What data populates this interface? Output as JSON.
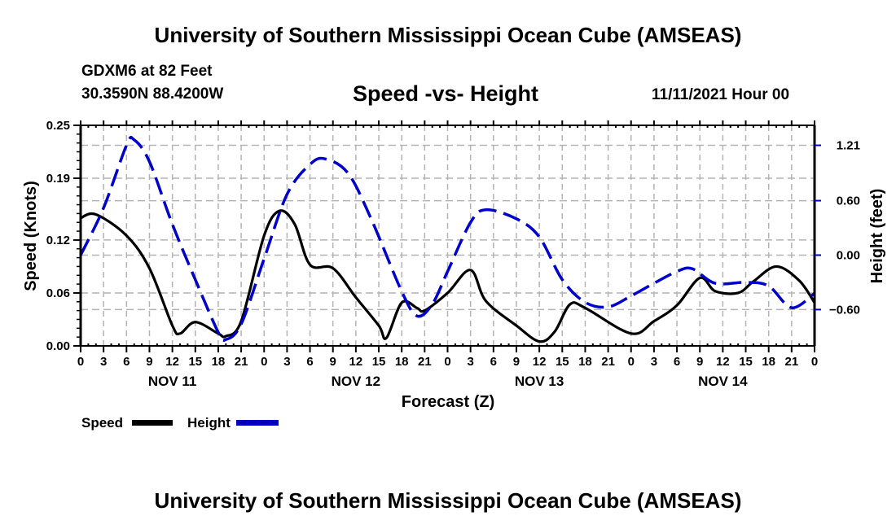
{
  "header": {
    "main_title": "University of Southern Mississippi Ocean Cube (AMSEAS)",
    "station": "GDXM6 at 82 Feet",
    "coords": "30.3590N  88.4200W",
    "chart_title": "Speed -vs- Height",
    "date": "11/11/2021 Hour 00"
  },
  "footer": {
    "title": "University of Southern Mississippi Ocean Cube (AMSEAS)"
  },
  "colors": {
    "speed": "#000000",
    "height": "#0000cc",
    "grid": "#b4b4b4"
  },
  "chart_data": {
    "type": "line",
    "title": "Speed -vs- Height",
    "xlabel": "Forecast (Z)",
    "ylabel": "Speed (Knots)",
    "y2label": "Height (feet)",
    "xlim_hours": [
      0,
      96
    ],
    "ylim": [
      0,
      0.25
    ],
    "y2lim": [
      -1.0,
      1.43
    ],
    "grid": true,
    "legend_position": "bottom-left",
    "x_tick_labels": [
      "0",
      "3",
      "6",
      "9",
      "12",
      "15",
      "18",
      "21",
      "0",
      "3",
      "6",
      "9",
      "12",
      "15",
      "18",
      "21",
      "0",
      "3",
      "6",
      "9",
      "12",
      "15",
      "18",
      "21",
      "0",
      "3",
      "6",
      "9",
      "12",
      "15",
      "18",
      "21",
      "0"
    ],
    "day_labels": [
      {
        "label": "NOV 11",
        "center_hour": 12
      },
      {
        "label": "NOV 12",
        "center_hour": 36
      },
      {
        "label": "NOV 13",
        "center_hour": 60
      },
      {
        "label": "NOV 14",
        "center_hour": 84
      }
    ],
    "y_ticks": [
      0.0,
      0.06,
      0.12,
      0.19,
      0.25
    ],
    "y_tick_labels": [
      "0.00",
      "0.06",
      "0.12",
      "0.19",
      "0.25"
    ],
    "y2_ticks": [
      -0.6,
      0.0,
      0.6,
      1.21
    ],
    "y2_tick_labels": [
      "−0.60",
      "0.00",
      "0.60",
      "1.21"
    ],
    "series": [
      {
        "name": "Speed",
        "axis": "left",
        "style": "solid",
        "x": [
          0,
          2,
          6,
          9,
          12,
          13,
          15,
          18,
          19,
          21,
          24,
          26,
          28,
          30,
          33,
          36,
          39,
          40,
          42,
          44,
          45,
          48,
          51,
          53,
          57,
          60,
          62,
          64,
          66,
          72,
          75,
          78,
          81,
          83,
          86,
          88,
          91,
          94,
          96
        ],
        "values": [
          0.145,
          0.149,
          0.125,
          0.088,
          0.023,
          0.014,
          0.027,
          0.014,
          0.011,
          0.028,
          0.125,
          0.153,
          0.138,
          0.092,
          0.088,
          0.055,
          0.023,
          0.009,
          0.049,
          0.043,
          0.04,
          0.06,
          0.086,
          0.051,
          0.023,
          0.005,
          0.016,
          0.047,
          0.043,
          0.014,
          0.028,
          0.046,
          0.077,
          0.062,
          0.06,
          0.073,
          0.09,
          0.074,
          0.049
        ]
      },
      {
        "name": "Height",
        "axis": "right",
        "style": "dashed",
        "x": [
          0,
          3,
          6,
          7,
          9,
          12,
          15,
          18,
          19,
          21,
          24,
          27,
          30,
          32,
          35,
          38,
          42,
          44,
          46,
          48,
          51,
          53,
          57,
          60,
          63,
          66,
          69,
          72,
          75,
          78,
          80,
          83,
          87,
          90,
          93,
          96
        ],
        "values": [
          0.0,
          0.52,
          1.21,
          1.27,
          1.03,
          0.34,
          -0.27,
          -0.85,
          -0.93,
          -0.76,
          -0.04,
          0.67,
          1.0,
          1.06,
          0.9,
          0.4,
          -0.4,
          -0.67,
          -0.54,
          -0.18,
          0.36,
          0.5,
          0.4,
          0.2,
          -0.27,
          -0.52,
          -0.57,
          -0.45,
          -0.31,
          -0.18,
          -0.15,
          -0.31,
          -0.3,
          -0.34,
          -0.58,
          -0.42
        ]
      }
    ],
    "legend": [
      {
        "label": "Speed",
        "style": "solid"
      },
      {
        "label": "Height",
        "style": "dashed"
      }
    ]
  }
}
